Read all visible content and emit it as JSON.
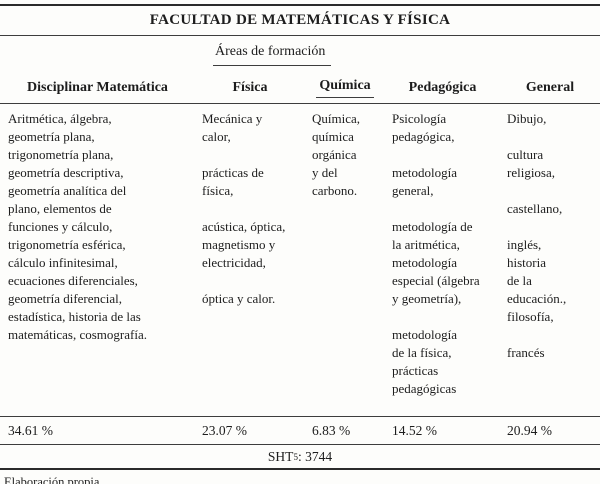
{
  "title": "FACULTAD DE MATEMÁTICAS Y FÍSICA",
  "areas_header": "Áreas de formación",
  "columns": [
    {
      "label": "Disciplinar Matemática",
      "content": "Aritmética, álgebra,\ngeometría plana,\ntrigonometría plana,\ngeometría descriptiva,\ngeometría analítica del\nplano, elementos de\nfunciones y cálculo,\ntrigonometría esférica,\ncálculo infinitesimal,\necuaciones diferenciales,\ngeometría diferencial,\nestadística, historia de las\nmatemáticas, cosmografía.",
      "percent": "34.61 %"
    },
    {
      "label": "Física",
      "content": "Mecánica y\ncalor,\n\nprácticas de\nfísica,\n\nacústica, óptica,\nmagnetismo y\nelectricidad,\n\nóptica y calor.",
      "percent": "23.07 %"
    },
    {
      "label": "Química",
      "content": "Química,\nquímica\norgánica\ny del\ncarbono.",
      "percent": "6.83 %"
    },
    {
      "label": "Pedagógica",
      "content": "Psicología\npedagógica,\n\nmetodología\ngeneral,\n\nmetodología de\nla aritmética,\nmetodología\nespecial (álgebra\ny geometría),\n\nmetodología\nde la física,\nprácticas\npedagógicas",
      "percent": "14.52 %"
    },
    {
      "label": "General",
      "content": "Dibujo,\n\ncultura\nreligiosa,\n\ncastellano,\n\ninglés,\nhistoria\nde la\neducación.,\nfilosofía,\n\nfrancés",
      "percent": "20.94 %"
    }
  ],
  "summary": {
    "label": "SHT",
    "superscript": "5",
    "value": ": 3744"
  },
  "caption": "Elaboración propia"
}
